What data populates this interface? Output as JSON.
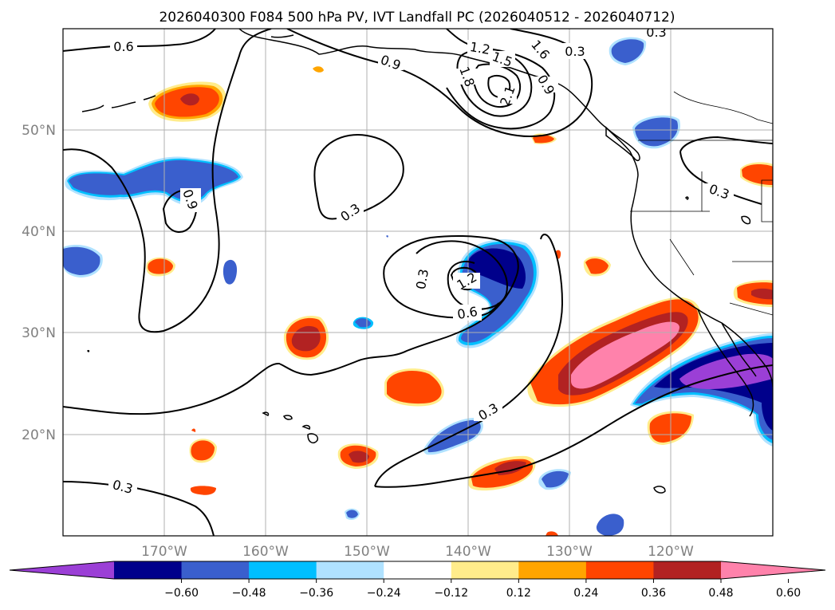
{
  "title": "2026040300 F084 500 hPa PV, IVT Landfall PC (2026040512 - 2026040712)",
  "latitudes": [
    "20°N",
    "30°N",
    "40°N",
    "50°N"
  ],
  "longitudes": [
    "170°W",
    "160°W",
    "150°W",
    "140°W",
    "130°W",
    "120°W"
  ],
  "colorbar": {
    "ticks": [
      "−0.60",
      "−0.48",
      "−0.36",
      "−0.24",
      "−0.12",
      "0.12",
      "0.24",
      "0.36",
      "0.48",
      "0.60"
    ],
    "colors": [
      "#9b3fd6",
      "#00008b",
      "#3a5fcd",
      "#00bfff",
      "#b0e2ff",
      "#ffffff",
      "#ffec8b",
      "#ffa500",
      "#ff4500",
      "#b22222",
      "#ff82ab"
    ]
  },
  "contour_labels": {
    "c1": "0.6",
    "c2": "0.9",
    "c3": "1.2",
    "c4": "1.5",
    "c5": "1.8",
    "c6": "2.1",
    "c7": "0.3",
    "c8": "0.9",
    "c9": "0.3",
    "c10": "0.9",
    "c11": "1.2",
    "c12": "0.6",
    "c13": "0.3",
    "c14": "0.3",
    "c15": "0.3",
    "c16": "0.3",
    "c17": "1.6",
    "c18": "0.9"
  },
  "map": {
    "region": "North Pacific and western North America",
    "projection": "cylindrical",
    "lon_range": [
      -180,
      -110
    ],
    "lat_range": [
      10,
      60
    ]
  }
}
